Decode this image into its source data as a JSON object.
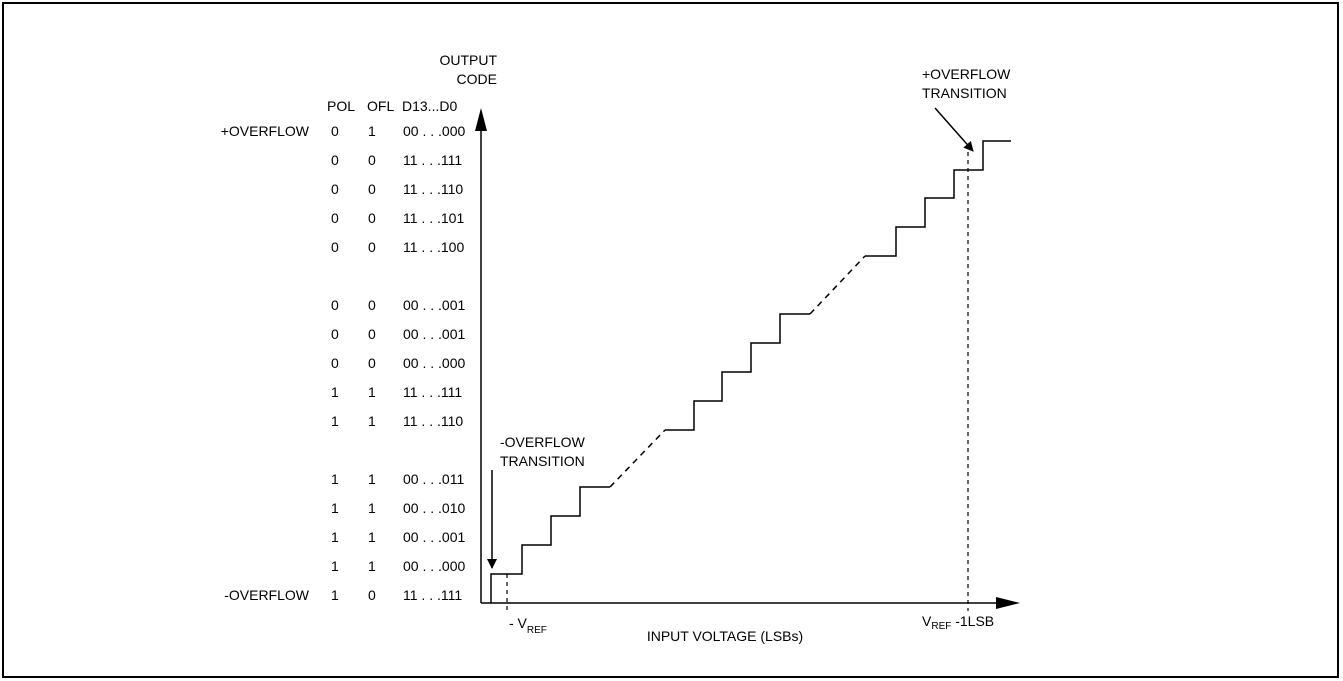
{
  "axes": {
    "y_label_line1": "OUTPUT",
    "y_label_line2": "CODE",
    "x_label": "INPUT VOLTAGE (LSBs)",
    "x_tick_left_prefix": "- V",
    "x_tick_left_sub": "REF",
    "x_tick_right_main": "V",
    "x_tick_right_sub": "REF",
    "x_tick_right_suffix": " -1LSB"
  },
  "columns": {
    "pol": "POL",
    "ofl": "OFL",
    "data": "D13...D0"
  },
  "rows": [
    {
      "label": "+OVERFLOW",
      "pol": "0",
      "ofl": "1",
      "code": "00 . . .000"
    },
    {
      "label": "",
      "pol": "0",
      "ofl": "0",
      "code": "11 . . .111"
    },
    {
      "label": "",
      "pol": "0",
      "ofl": "0",
      "code": "11 . . .110"
    },
    {
      "label": "",
      "pol": "0",
      "ofl": "0",
      "code": "11 . . .101"
    },
    {
      "label": "",
      "pol": "0",
      "ofl": "0",
      "code": "11 . . .100"
    },
    {
      "label": "",
      "pol": "0",
      "ofl": "0",
      "code": "00 . . .001"
    },
    {
      "label": "",
      "pol": "0",
      "ofl": "0",
      "code": "00 . . .001"
    },
    {
      "label": "",
      "pol": "0",
      "ofl": "0",
      "code": "00 . . .000"
    },
    {
      "label": "",
      "pol": "1",
      "ofl": "1",
      "code": "11 . . .111"
    },
    {
      "label": "",
      "pol": "1",
      "ofl": "1",
      "code": "11 . . .110"
    },
    {
      "label": "",
      "pol": "1",
      "ofl": "1",
      "code": "00 . . .011"
    },
    {
      "label": "",
      "pol": "1",
      "ofl": "1",
      "code": "00 . . .010"
    },
    {
      "label": "",
      "pol": "1",
      "ofl": "1",
      "code": "00 . . .001"
    },
    {
      "label": "",
      "pol": "1",
      "ofl": "1",
      "code": "00 . . .000"
    },
    {
      "label": "-OVERFLOW",
      "pol": "1",
      "ofl": "0",
      "code": "11 . . .111"
    }
  ],
  "annotations": {
    "pos_overflow_line1": "+OVERFLOW",
    "pos_overflow_line2": "TRANSITION",
    "neg_overflow_line1": "-OVERFLOW",
    "neg_overflow_line2": "TRANSITION"
  }
}
